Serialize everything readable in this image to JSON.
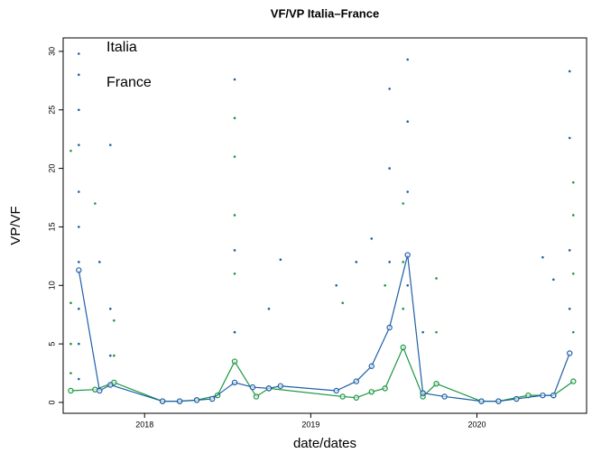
{
  "chart_data": {
    "type": "scatter",
    "title": "VF/VP Italia–France",
    "xlabel": "date/dates",
    "ylabel": "VP/VF",
    "xlim": [
      2017.51,
      2020.66
    ],
    "ylim": [
      -0.93,
      31.15
    ],
    "xticks": [
      2018,
      2019,
      2020
    ],
    "yticks": [
      0,
      5,
      10,
      15,
      20,
      25,
      30
    ],
    "grid": false,
    "legend": "upper left",
    "series": [
      {
        "name": "Italia",
        "color": "#1a9641",
        "x": [
          2017.556,
          2017.702,
          2017.816,
          2018.108,
          2018.211,
          2018.314,
          2018.439,
          2018.542,
          2018.672,
          2018.748,
          2019.192,
          2019.274,
          2019.366,
          2019.447,
          2019.556,
          2019.675,
          2019.756,
          2020.027,
          2020.13,
          2020.309,
          2020.461,
          2020.58
        ],
        "values": [
          1.0,
          1.1,
          1.7,
          0.1,
          0.1,
          0.2,
          0.6,
          3.5,
          0.5,
          1.2,
          0.5,
          0.4,
          0.9,
          1.2,
          4.7,
          0.5,
          1.6,
          0.1,
          0.1,
          0.6,
          0.6,
          1.8
        ],
        "points_x": [
          2017.556,
          2017.556,
          2017.556,
          2017.556,
          2017.702,
          2017.816,
          2017.816,
          2018.542,
          2018.542,
          2018.542,
          2018.542,
          2018.542,
          2019.447,
          2019.556,
          2019.556,
          2019.556,
          2019.756,
          2019.756,
          2020.58,
          2020.58,
          2020.58,
          2020.58,
          2019.192
        ],
        "points_values": [
          21.5,
          8.5,
          5,
          2.5,
          17,
          7,
          4,
          24.3,
          21,
          16,
          11,
          6,
          10,
          17,
          12,
          8,
          10.6,
          6,
          18.8,
          16,
          11,
          6,
          8.5
        ]
      },
      {
        "name": "France",
        "color": "#1f5fa8",
        "x": [
          2017.604,
          2017.729,
          2017.794,
          2018.108,
          2018.211,
          2018.314,
          2018.407,
          2018.542,
          2018.65,
          2018.748,
          2018.818,
          2019.154,
          2019.274,
          2019.366,
          2019.474,
          2019.583,
          2019.675,
          2019.805,
          2020.027,
          2020.13,
          2020.238,
          2020.396,
          2020.461,
          2020.558
        ],
        "values": [
          11.3,
          1.0,
          1.5,
          0.1,
          0.1,
          0.2,
          0.3,
          1.7,
          1.3,
          1.2,
          1.4,
          1.0,
          1.8,
          3.1,
          6.4,
          12.6,
          0.8,
          0.5,
          0.1,
          0.1,
          0.3,
          0.6,
          0.6,
          4.2
        ],
        "points_x": [
          2017.604,
          2017.604,
          2017.604,
          2017.604,
          2017.604,
          2017.604,
          2017.604,
          2017.604,
          2017.604,
          2017.604,
          2017.794,
          2017.794,
          2017.794,
          2017.729,
          2018.542,
          2018.542,
          2018.542,
          2018.748,
          2018.818,
          2019.154,
          2019.274,
          2019.366,
          2019.474,
          2019.474,
          2019.474,
          2019.583,
          2019.583,
          2019.583,
          2019.583,
          2019.675,
          2020.558,
          2020.558,
          2020.558,
          2020.558,
          2020.396,
          2020.461
        ],
        "points_values": [
          29.8,
          28,
          25,
          22,
          18,
          15,
          12,
          8,
          5,
          2,
          22,
          8,
          4,
          12,
          27.6,
          13,
          6,
          8,
          12.2,
          10,
          12,
          14,
          26.8,
          20,
          12,
          29.3,
          24,
          18,
          10,
          6,
          28.3,
          22.6,
          13,
          8,
          12.4,
          10.5
        ]
      }
    ]
  }
}
